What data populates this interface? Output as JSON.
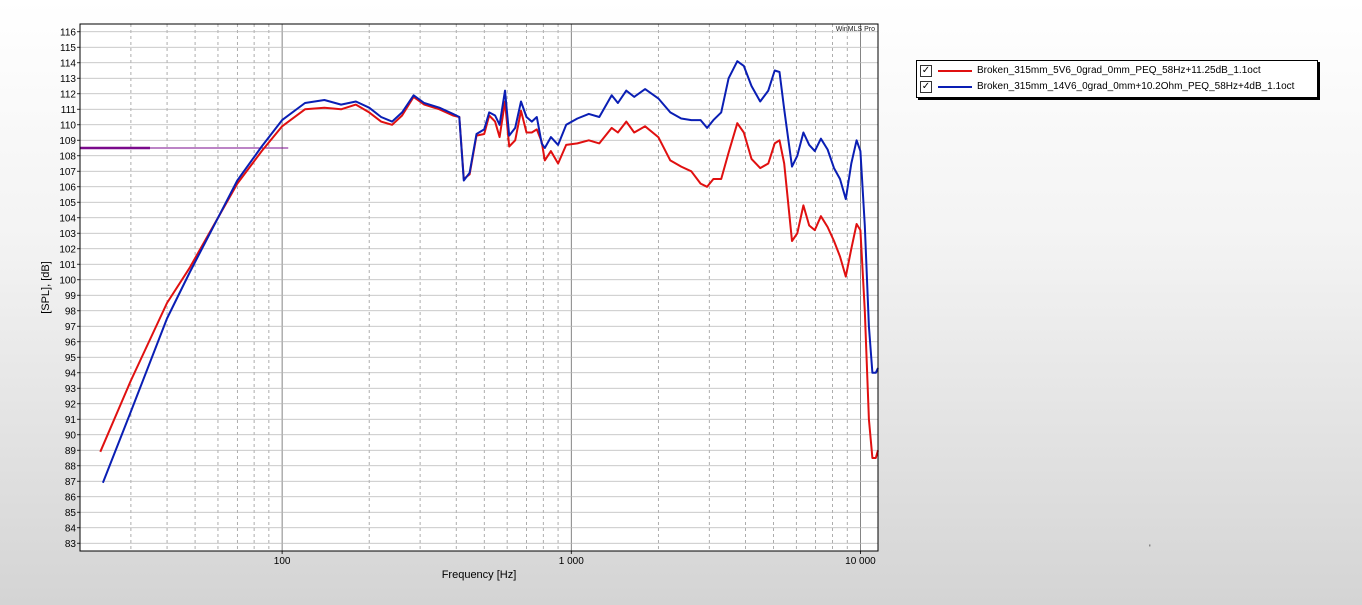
{
  "colors": {
    "series_1": "#e01010",
    "series_2": "#0a1eb4",
    "marker": "#7a0a8c"
  },
  "watermark": "WinMLS Pro",
  "stray_mark": "'",
  "chart_data": {
    "type": "line",
    "title": "",
    "xlabel": "Frequency [Hz]",
    "ylabel": "[SPL], [dB]",
    "xscale": "log",
    "xlim": [
      20,
      11500
    ],
    "ylim": [
      82.5,
      116.5
    ],
    "grid": true,
    "legend_position": "top-right",
    "x_tick_labels": [
      {
        "value": 100,
        "label": "100"
      },
      {
        "value": 1000,
        "label": "1 000"
      },
      {
        "value": 10000,
        "label": "10 000"
      }
    ],
    "y_ticks": [
      83,
      84,
      85,
      86,
      87,
      88,
      89,
      90,
      91,
      92,
      93,
      94,
      95,
      96,
      97,
      98,
      99,
      100,
      101,
      102,
      103,
      104,
      105,
      106,
      107,
      108,
      109,
      110,
      111,
      112,
      113,
      114,
      115,
      116
    ],
    "reference_line": {
      "y": 108.5,
      "x_start": 20,
      "x_end": 105
    },
    "series": [
      {
        "name": "Broken_315mm_5V6_0grad_0mm_PEQ_58Hz+11.25dB_1.1oct",
        "checked": true,
        "points": [
          [
            23.5,
            88.9
          ],
          [
            30,
            93.5
          ],
          [
            40,
            98.5
          ],
          [
            48,
            100.8
          ],
          [
            60,
            104
          ],
          [
            70,
            106.2
          ],
          [
            85,
            108.3
          ],
          [
            100,
            109.9
          ],
          [
            120,
            111
          ],
          [
            140,
            111.1
          ],
          [
            160,
            111
          ],
          [
            180,
            111.3
          ],
          [
            200,
            110.8
          ],
          [
            220,
            110.2
          ],
          [
            240,
            110
          ],
          [
            260,
            110.6
          ],
          [
            285,
            111.8
          ],
          [
            310,
            111.3
          ],
          [
            350,
            111
          ],
          [
            390,
            110.6
          ],
          [
            410,
            110.5
          ],
          [
            425,
            106.5
          ],
          [
            445,
            106.8
          ],
          [
            470,
            109.3
          ],
          [
            500,
            109.4
          ],
          [
            520,
            110.6
          ],
          [
            545,
            110.2
          ],
          [
            565,
            109.2
          ],
          [
            590,
            111.5
          ],
          [
            610,
            108.6
          ],
          [
            640,
            109
          ],
          [
            670,
            110.9
          ],
          [
            700,
            109.5
          ],
          [
            730,
            109.5
          ],
          [
            760,
            109.7
          ],
          [
            790,
            108.9
          ],
          [
            810,
            107.7
          ],
          [
            850,
            108.3
          ],
          [
            900,
            107.5
          ],
          [
            960,
            108.7
          ],
          [
            1050,
            108.8
          ],
          [
            1150,
            109
          ],
          [
            1250,
            108.8
          ],
          [
            1380,
            109.8
          ],
          [
            1450,
            109.5
          ],
          [
            1550,
            110.2
          ],
          [
            1650,
            109.5
          ],
          [
            1800,
            109.9
          ],
          [
            2000,
            109.2
          ],
          [
            2200,
            107.7
          ],
          [
            2400,
            107.3
          ],
          [
            2600,
            107
          ],
          [
            2800,
            106.2
          ],
          [
            2950,
            106
          ],
          [
            3100,
            106.5
          ],
          [
            3300,
            106.5
          ],
          [
            3500,
            108.2
          ],
          [
            3750,
            110.1
          ],
          [
            3950,
            109.5
          ],
          [
            4200,
            107.8
          ],
          [
            4500,
            107.2
          ],
          [
            4800,
            107.5
          ],
          [
            5050,
            108.8
          ],
          [
            5250,
            109
          ],
          [
            5450,
            107.5
          ],
          [
            5800,
            102.5
          ],
          [
            6050,
            103
          ],
          [
            6350,
            104.8
          ],
          [
            6650,
            103.5
          ],
          [
            6950,
            103.2
          ],
          [
            7300,
            104.1
          ],
          [
            7700,
            103.4
          ],
          [
            8100,
            102.5
          ],
          [
            8500,
            101.5
          ],
          [
            8900,
            100.2
          ],
          [
            9300,
            102
          ],
          [
            9700,
            103.6
          ],
          [
            10000,
            103.2
          ],
          [
            10350,
            98
          ],
          [
            10700,
            91
          ],
          [
            11000,
            88.5
          ],
          [
            11300,
            88.5
          ],
          [
            11500,
            89
          ]
        ]
      },
      {
        "name": "Broken_315mm_14V6_0grad_0mm+10.2Ohm_PEQ_58Hz+4dB_1.1oct",
        "checked": true,
        "points": [
          [
            24,
            86.9
          ],
          [
            30,
            91.5
          ],
          [
            40,
            97.5
          ],
          [
            48,
            100.5
          ],
          [
            60,
            104
          ],
          [
            70,
            106.4
          ],
          [
            85,
            108.6
          ],
          [
            100,
            110.3
          ],
          [
            120,
            111.4
          ],
          [
            140,
            111.6
          ],
          [
            160,
            111.3
          ],
          [
            180,
            111.5
          ],
          [
            200,
            111.1
          ],
          [
            220,
            110.5
          ],
          [
            240,
            110.2
          ],
          [
            260,
            110.8
          ],
          [
            285,
            111.9
          ],
          [
            310,
            111.4
          ],
          [
            350,
            111.1
          ],
          [
            390,
            110.7
          ],
          [
            410,
            110.5
          ],
          [
            425,
            106.4
          ],
          [
            445,
            106.9
          ],
          [
            470,
            109.4
          ],
          [
            500,
            109.7
          ],
          [
            520,
            110.8
          ],
          [
            545,
            110.6
          ],
          [
            565,
            110
          ],
          [
            590,
            112.2
          ],
          [
            610,
            109.3
          ],
          [
            640,
            109.8
          ],
          [
            670,
            111.5
          ],
          [
            700,
            110.5
          ],
          [
            730,
            110.2
          ],
          [
            760,
            110.5
          ],
          [
            790,
            108.8
          ],
          [
            810,
            108.5
          ],
          [
            850,
            109.2
          ],
          [
            900,
            108.7
          ],
          [
            960,
            110
          ],
          [
            1050,
            110.4
          ],
          [
            1150,
            110.7
          ],
          [
            1250,
            110.5
          ],
          [
            1380,
            111.9
          ],
          [
            1450,
            111.4
          ],
          [
            1550,
            112.2
          ],
          [
            1650,
            111.8
          ],
          [
            1800,
            112.3
          ],
          [
            2000,
            111.7
          ],
          [
            2200,
            110.8
          ],
          [
            2400,
            110.4
          ],
          [
            2600,
            110.3
          ],
          [
            2800,
            110.3
          ],
          [
            2950,
            109.8
          ],
          [
            3100,
            110.3
          ],
          [
            3300,
            110.8
          ],
          [
            3500,
            113
          ],
          [
            3750,
            114.1
          ],
          [
            3950,
            113.8
          ],
          [
            4200,
            112.5
          ],
          [
            4500,
            111.5
          ],
          [
            4800,
            112.2
          ],
          [
            5050,
            113.5
          ],
          [
            5250,
            113.4
          ],
          [
            5450,
            111
          ],
          [
            5800,
            107.3
          ],
          [
            6050,
            108
          ],
          [
            6350,
            109.5
          ],
          [
            6650,
            108.7
          ],
          [
            6950,
            108.3
          ],
          [
            7300,
            109.1
          ],
          [
            7700,
            108.4
          ],
          [
            8100,
            107.2
          ],
          [
            8500,
            106.5
          ],
          [
            8900,
            105.2
          ],
          [
            9300,
            107.5
          ],
          [
            9700,
            109
          ],
          [
            10000,
            108.3
          ],
          [
            10350,
            103.5
          ],
          [
            10700,
            97
          ],
          [
            11000,
            94
          ],
          [
            11300,
            94
          ],
          [
            11500,
            94.3
          ]
        ]
      }
    ]
  }
}
